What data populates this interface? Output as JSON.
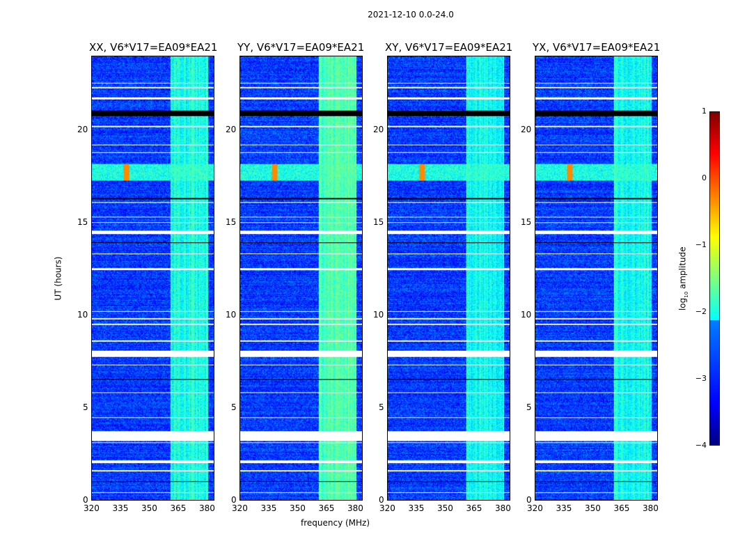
{
  "figure": {
    "suptitle": "2021-12-10 0.0-24.0",
    "xlabel": "frequency (MHz)",
    "ylabel": "UT (hours)",
    "colorbar_label": "log",
    "colorbar_label_sub": "10",
    "colorbar_label_tail": " amplitude"
  },
  "chart_data": {
    "type": "heatmap",
    "colormap": "jet",
    "panels": [
      {
        "title": "XX, V6*V17=EA09*EA21",
        "pol": "XX"
      },
      {
        "title": "YY, V6*V17=EA09*EA21",
        "pol": "YY"
      },
      {
        "title": "XY, V6*V17=EA09*EA21",
        "pol": "XY"
      },
      {
        "title": "YX, V6*V17=EA09*EA21",
        "pol": "YX"
      }
    ],
    "xlim": [
      320,
      384
    ],
    "ylim": [
      0,
      24
    ],
    "xticks": [
      "320",
      "335",
      "350",
      "365",
      "380"
    ],
    "xtick_values": [
      320,
      335,
      350,
      365,
      380
    ],
    "yticks": [
      "0",
      "5",
      "10",
      "15",
      "20"
    ],
    "ytick_values": [
      0,
      5,
      10,
      15,
      20
    ],
    "clim": [
      -4,
      1
    ],
    "cticks": [
      "1",
      "0",
      "−1",
      "−2",
      "−3",
      "−4"
    ],
    "ctick_values": [
      1,
      0,
      -1,
      -2,
      -3,
      -4
    ],
    "background_log_amplitude": -3.1,
    "rfi_band_mhz": [
      361,
      381
    ],
    "rfi_band_log_amplitude": -2.0,
    "rfi_time_band_hours": [
      17.3,
      18.2
    ],
    "flagged_hours": [
      [
        0.4,
        0.45
      ],
      [
        1.55,
        1.62
      ],
      [
        2.0,
        2.15
      ],
      [
        3.1,
        3.15
      ],
      [
        3.2,
        3.75
      ],
      [
        4.45,
        4.5
      ],
      [
        5.8,
        5.85
      ],
      [
        7.3,
        7.35
      ],
      [
        7.77,
        8.1
      ],
      [
        8.6,
        8.65
      ],
      [
        9.5,
        9.55
      ],
      [
        9.8,
        9.85
      ],
      [
        10.2,
        10.25
      ],
      [
        12.45,
        12.55
      ],
      [
        13.3,
        13.35
      ],
      [
        14.4,
        14.6
      ],
      [
        15.0,
        15.05
      ],
      [
        15.3,
        15.35
      ],
      [
        16.1,
        16.15
      ],
      [
        18.8,
        18.85
      ],
      [
        19.2,
        19.25
      ],
      [
        20.2,
        20.25
      ],
      [
        21.7,
        21.8
      ],
      [
        22.3,
        22.35
      ],
      [
        22.55,
        22.6
      ]
    ],
    "zero_hours": [
      [
        1.0,
        1.05
      ],
      [
        6.5,
        6.55
      ],
      [
        13.9,
        13.95
      ],
      [
        16.3,
        16.35
      ],
      [
        20.8,
        21.1
      ]
    ]
  }
}
